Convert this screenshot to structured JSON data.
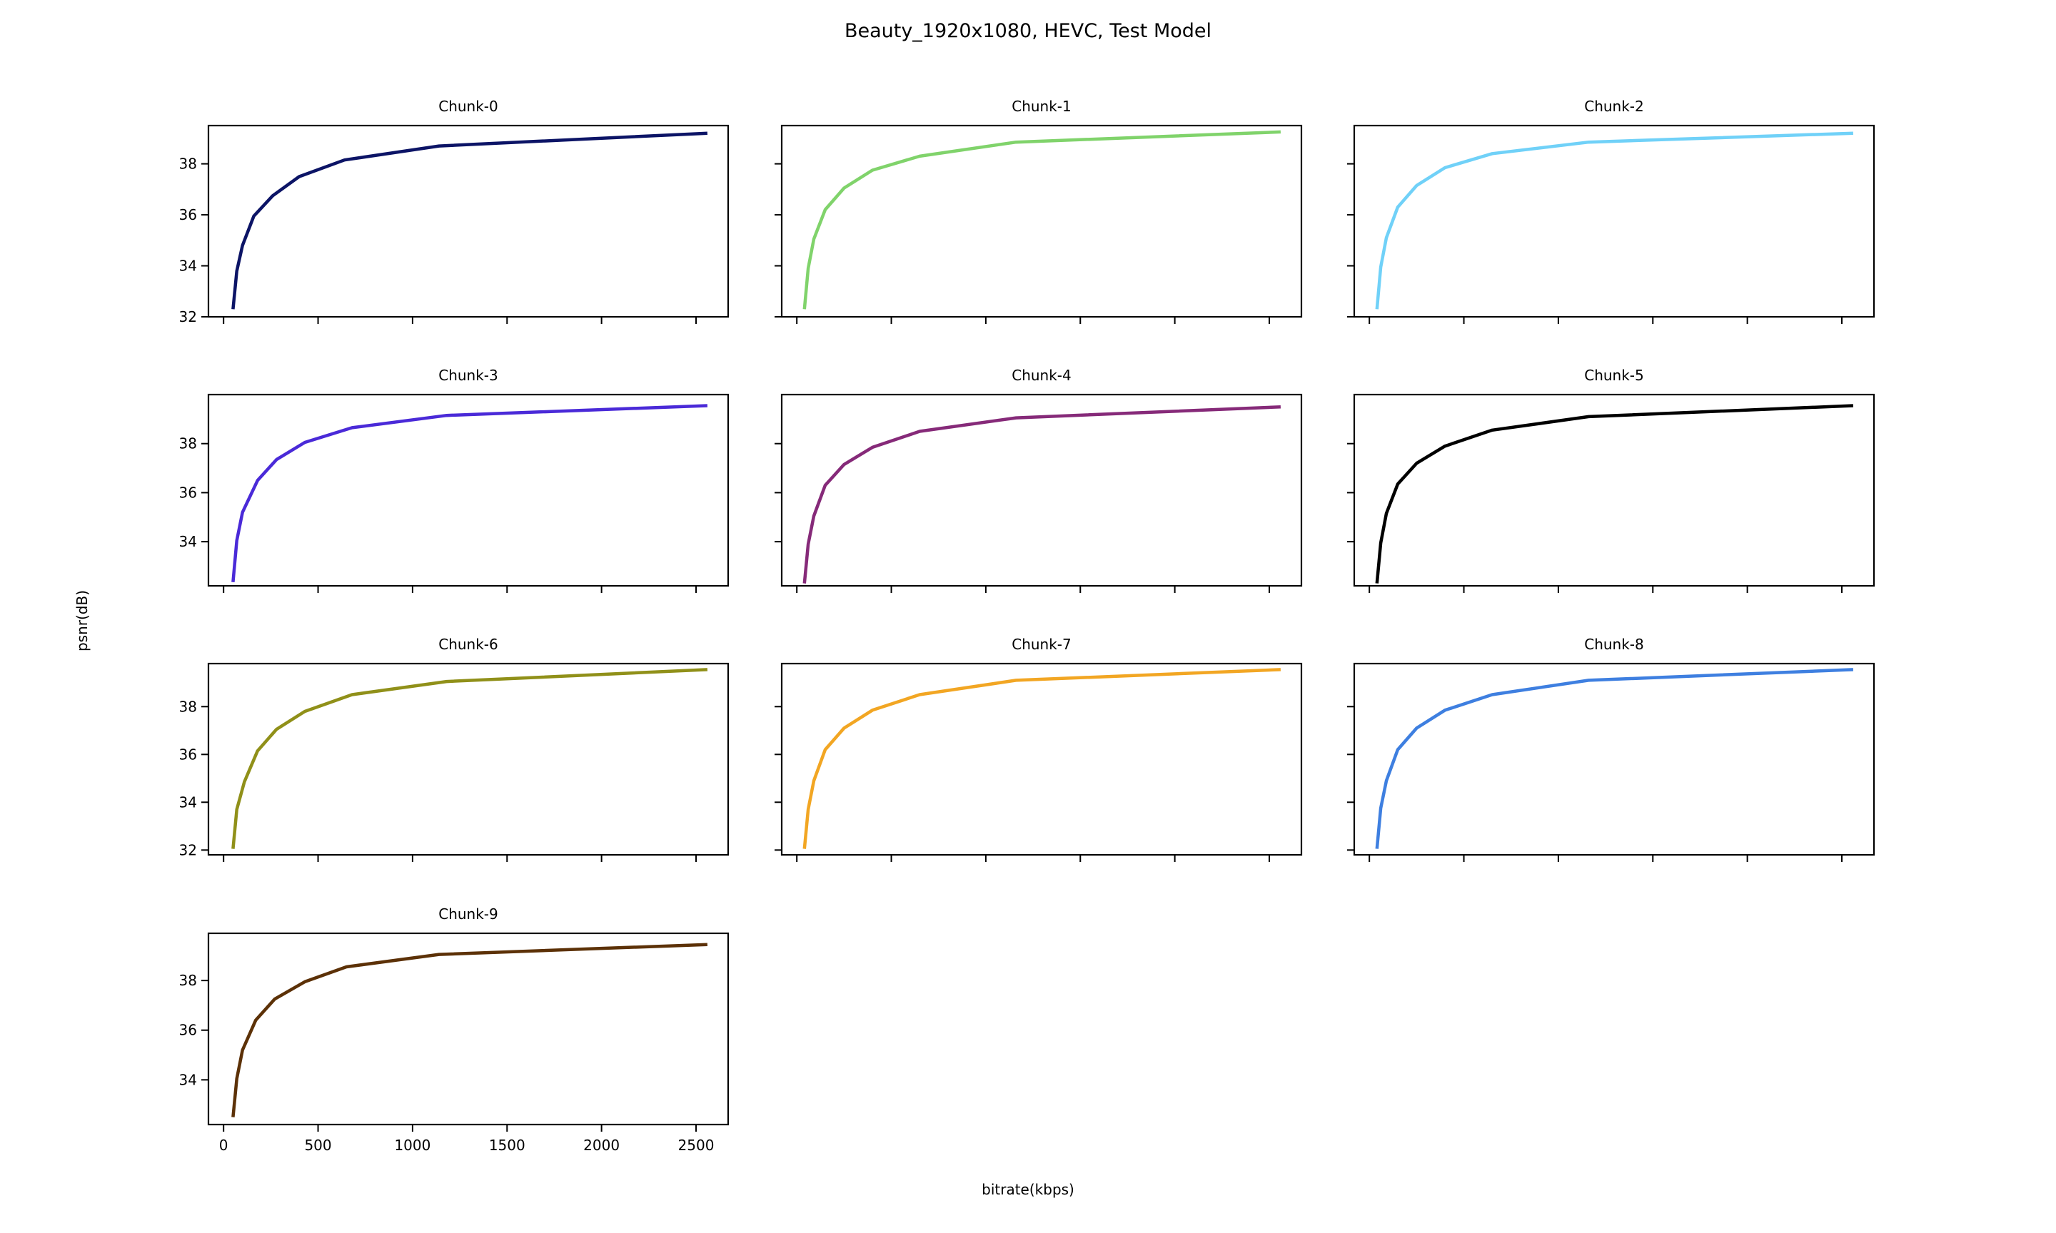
{
  "figure": {
    "title": "Beauty_1920x1080, HEVC, Test Model",
    "xlabel": "bitrate(kbps)",
    "ylabel": "psnr(dB)"
  },
  "chart_data": [
    {
      "type": "line",
      "title": "Chunk-0",
      "color": "#0c1466",
      "x": [
        50,
        70,
        100,
        160,
        260,
        400,
        640,
        1140,
        2560
      ],
      "y": [
        32.3,
        33.8,
        34.8,
        35.95,
        36.75,
        37.5,
        38.15,
        38.7,
        39.2
      ],
      "xlim": [
        -80,
        2670
      ],
      "ylim": [
        32,
        39.5
      ],
      "xticks": [
        0,
        500,
        1000,
        1500,
        2000,
        2500
      ],
      "yticks": [
        32,
        34,
        36,
        38
      ],
      "show_xticklabels": false,
      "show_yticklabels": true
    },
    {
      "type": "line",
      "title": "Chunk-1",
      "color": "#80d36b",
      "x": [
        40,
        60,
        90,
        150,
        250,
        400,
        650,
        1160,
        2560
      ],
      "y": [
        32.3,
        33.9,
        35.05,
        36.2,
        37.05,
        37.75,
        38.3,
        38.85,
        39.25
      ],
      "xlim": [
        -80,
        2670
      ],
      "ylim": [
        32,
        39.5
      ],
      "xticks": [
        0,
        500,
        1000,
        1500,
        2000,
        2500
      ],
      "yticks": [
        32,
        34,
        36,
        38
      ],
      "show_xticklabels": false,
      "show_yticklabels": false
    },
    {
      "type": "line",
      "title": "Chunk-2",
      "color": "#70d1f8",
      "x": [
        40,
        60,
        90,
        150,
        250,
        400,
        650,
        1160,
        2560
      ],
      "y": [
        32.3,
        33.95,
        35.1,
        36.3,
        37.15,
        37.85,
        38.4,
        38.85,
        39.2
      ],
      "xlim": [
        -80,
        2670
      ],
      "ylim": [
        32,
        39.5
      ],
      "xticks": [
        0,
        500,
        1000,
        1500,
        2000,
        2500
      ],
      "yticks": [
        32,
        34,
        36,
        38
      ],
      "show_xticklabels": false,
      "show_yticklabels": false
    },
    {
      "type": "line",
      "title": "Chunk-3",
      "color": "#4a2ad8",
      "x": [
        50,
        70,
        100,
        180,
        280,
        430,
        680,
        1180,
        2560
      ],
      "y": [
        32.35,
        34.05,
        35.2,
        36.5,
        37.35,
        38.05,
        38.65,
        39.15,
        39.55
      ],
      "xlim": [
        -80,
        2670
      ],
      "ylim": [
        32.2,
        40
      ],
      "xticks": [
        0,
        500,
        1000,
        1500,
        2000,
        2500
      ],
      "yticks": [
        34,
        36,
        38
      ],
      "show_xticklabels": false,
      "show_yticklabels": true
    },
    {
      "type": "line",
      "title": "Chunk-4",
      "color": "#862a79",
      "x": [
        40,
        60,
        90,
        150,
        250,
        400,
        650,
        1160,
        2560
      ],
      "y": [
        32.3,
        33.9,
        35.05,
        36.3,
        37.15,
        37.85,
        38.5,
        39.05,
        39.5
      ],
      "xlim": [
        -80,
        2670
      ],
      "ylim": [
        32.2,
        40
      ],
      "xticks": [
        0,
        500,
        1000,
        1500,
        2000,
        2500
      ],
      "yticks": [
        34,
        36,
        38
      ],
      "show_xticklabels": false,
      "show_yticklabels": false
    },
    {
      "type": "line",
      "title": "Chunk-5",
      "color": "#000000",
      "x": [
        40,
        60,
        90,
        150,
        250,
        400,
        650,
        1160,
        2560
      ],
      "y": [
        32.3,
        33.95,
        35.15,
        36.35,
        37.2,
        37.9,
        38.55,
        39.1,
        39.55
      ],
      "xlim": [
        -80,
        2670
      ],
      "ylim": [
        32.2,
        40
      ],
      "xticks": [
        0,
        500,
        1000,
        1500,
        2000,
        2500
      ],
      "yticks": [
        34,
        36,
        38
      ],
      "show_xticklabels": false,
      "show_yticklabels": false
    },
    {
      "type": "line",
      "title": "Chunk-6",
      "color": "#909019",
      "x": [
        50,
        70,
        110,
        180,
        280,
        430,
        680,
        1180,
        2560
      ],
      "y": [
        32.05,
        33.7,
        34.85,
        36.15,
        37.05,
        37.8,
        38.5,
        39.05,
        39.55
      ],
      "xlim": [
        -80,
        2670
      ],
      "ylim": [
        31.8,
        39.8
      ],
      "xticks": [
        0,
        500,
        1000,
        1500,
        2000,
        2500
      ],
      "yticks": [
        32,
        34,
        36,
        38
      ],
      "show_xticklabels": false,
      "show_yticklabels": true
    },
    {
      "type": "line",
      "title": "Chunk-7",
      "color": "#f2a623",
      "x": [
        40,
        60,
        90,
        150,
        250,
        400,
        650,
        1160,
        2560
      ],
      "y": [
        32.05,
        33.7,
        34.9,
        36.2,
        37.1,
        37.85,
        38.5,
        39.1,
        39.55
      ],
      "xlim": [
        -80,
        2670
      ],
      "ylim": [
        31.8,
        39.8
      ],
      "xticks": [
        0,
        500,
        1000,
        1500,
        2000,
        2500
      ],
      "yticks": [
        32,
        34,
        36,
        38
      ],
      "show_xticklabels": false,
      "show_yticklabels": false
    },
    {
      "type": "line",
      "title": "Chunk-8",
      "color": "#3e7fe0",
      "x": [
        40,
        60,
        90,
        150,
        250,
        400,
        650,
        1160,
        2560
      ],
      "y": [
        32.05,
        33.75,
        34.9,
        36.2,
        37.1,
        37.85,
        38.5,
        39.1,
        39.55
      ],
      "xlim": [
        -80,
        2670
      ],
      "ylim": [
        31.8,
        39.8
      ],
      "xticks": [
        0,
        500,
        1000,
        1500,
        2000,
        2500
      ],
      "yticks": [
        32,
        34,
        36,
        38
      ],
      "show_xticklabels": false,
      "show_yticklabels": false
    },
    {
      "type": "line",
      "title": "Chunk-9",
      "color": "#5c3107",
      "x": [
        50,
        70,
        100,
        170,
        270,
        430,
        650,
        1140,
        2560
      ],
      "y": [
        32.5,
        34.05,
        35.2,
        36.4,
        37.25,
        37.95,
        38.55,
        39.05,
        39.45
      ],
      "xlim": [
        -80,
        2670
      ],
      "ylim": [
        32.2,
        39.9
      ],
      "xticks": [
        0,
        500,
        1000,
        1500,
        2000,
        2500
      ],
      "yticks": [
        34,
        36,
        38
      ],
      "show_xticklabels": true,
      "show_yticklabels": true
    }
  ]
}
